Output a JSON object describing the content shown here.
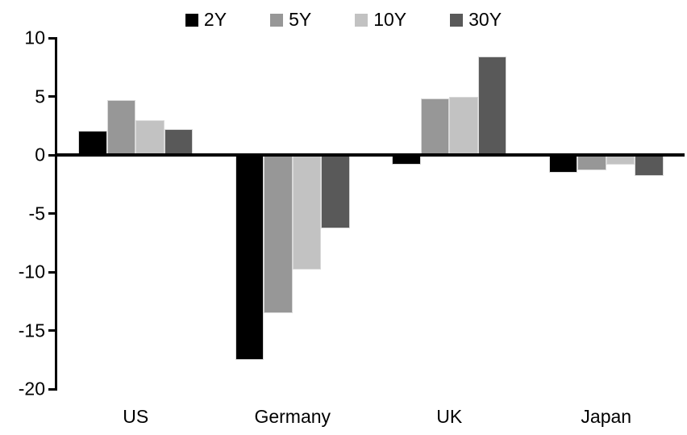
{
  "chart_data": {
    "type": "bar",
    "title": "",
    "categories": [
      "US",
      "Germany",
      "UK",
      "Japan"
    ],
    "series": [
      {
        "name": "2Y",
        "color": "#000000",
        "values": [
          2.1,
          -17.5,
          -0.8,
          -1.5
        ]
      },
      {
        "name": "5Y",
        "color": "#979797",
        "values": [
          4.7,
          -13.5,
          4.8,
          -1.3
        ]
      },
      {
        "name": "10Y",
        "color": "#c2c2c2",
        "values": [
          3.0,
          -9.8,
          5.0,
          -0.8
        ]
      },
      {
        "name": "30Y",
        "color": "#595959",
        "values": [
          2.2,
          -6.3,
          8.4,
          -1.8
        ]
      }
    ],
    "ylim": [
      -20,
      10
    ],
    "yticks": [
      10,
      5,
      0,
      -5,
      -10,
      -15,
      -20
    ],
    "xlabel": "",
    "ylabel": "",
    "legend_position": "top",
    "grid": false,
    "axis_color": "#000000",
    "background_color": "#ffffff",
    "bar_outline_color": "#d9d9d9"
  }
}
